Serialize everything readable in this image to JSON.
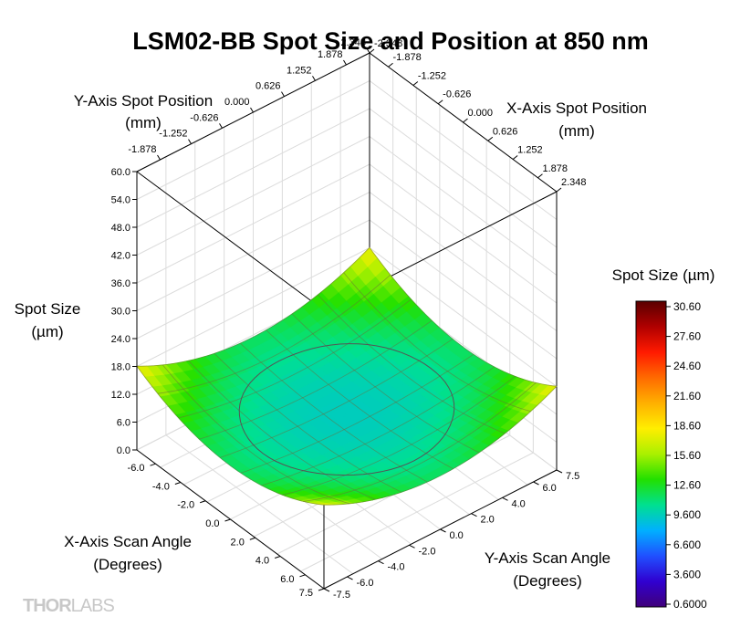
{
  "chart_data": {
    "type": "surface3d",
    "title": "LSM02-BB Spot Size and Position at 850 nm",
    "z_axis": {
      "label_line1": "Spot Size",
      "label_line2": "(µm)",
      "range": [
        0,
        60
      ],
      "ticks": [
        "0.0",
        "6.0",
        "12.0",
        "18.0",
        "24.0",
        "30.0",
        "36.0",
        "42.0",
        "48.0",
        "54.0",
        "60.0"
      ]
    },
    "x_scan_axis": {
      "label_line1": "X-Axis Scan Angle",
      "label_line2": "(Degrees)",
      "range": [
        -7.5,
        7.5
      ],
      "ticks": [
        "-6.0",
        "-4.0",
        "-2.0",
        "0.0",
        "2.0",
        "4.0",
        "6.0",
        "7.5"
      ]
    },
    "y_scan_axis": {
      "label_line1": "Y-Axis Scan Angle",
      "label_line2": "(Degrees)",
      "range": [
        -7.5,
        7.5
      ],
      "ticks": [
        "-7.5",
        "-6.0",
        "-4.0",
        "-2.0",
        "0.0",
        "2.0",
        "4.0",
        "6.0",
        "7.5"
      ]
    },
    "y_position_axis": {
      "label_line1": "Y-Axis Spot Position",
      "label_line2": "(mm)",
      "range": [
        -2.348,
        2.348
      ],
      "ticks": [
        "-1.878",
        "-1.252",
        "-0.626",
        "0.000",
        "0.626",
        "1.252",
        "1.878",
        "2.348"
      ]
    },
    "x_position_axis": {
      "label_line1": "X-Axis Spot Position",
      "label_line2": "(mm)",
      "range": [
        -2.348,
        2.348
      ],
      "ticks": [
        "-2.348",
        "-1.878",
        "-1.252",
        "-0.626",
        "0.000",
        "0.626",
        "1.252",
        "1.878",
        "2.348"
      ]
    },
    "colorbar": {
      "title": "Spot Size (µm)",
      "ticks": [
        "30.60",
        "27.60",
        "24.60",
        "21.60",
        "18.60",
        "15.60",
        "12.60",
        "9.600",
        "6.600",
        "3.600",
        "0.6000"
      ],
      "stops": [
        "#5a0000",
        "#b00000",
        "#ff1a00",
        "#ff6a00",
        "#ffb000",
        "#ffee00",
        "#aaf000",
        "#22e000",
        "#00e090",
        "#00b0ff",
        "#2050ff",
        "#3000d0",
        "#40007a"
      ]
    },
    "surface": {
      "center_value": 9.6,
      "edge_value": 13.5,
      "corner_value": 20.0
    },
    "grid": true,
    "legend": "right"
  },
  "brand": {
    "logo_part1": "THOR",
    "logo_part2": "LABS"
  }
}
